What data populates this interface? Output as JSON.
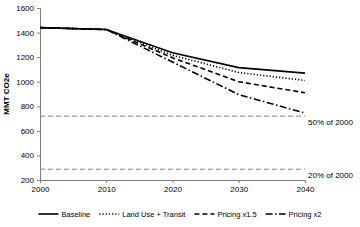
{
  "chart_data": {
    "type": "line",
    "y_label": "MMT CO2e",
    "x": [
      2000,
      2010,
      2020,
      2030,
      2040
    ],
    "xlim": [
      2000,
      2040
    ],
    "xticks": [
      2000,
      2010,
      2020,
      2030,
      2040
    ],
    "ylim": [
      200,
      1600
    ],
    "yticks": [
      200,
      400,
      600,
      800,
      1000,
      1200,
      1400,
      1600
    ],
    "grid": false,
    "legend": "bottom",
    "series": [
      {
        "name": "Baseline",
        "color": "#000000",
        "line_style": "solid",
        "values": [
          1440,
          1425,
          1235,
          1115,
          1070
        ]
      },
      {
        "name": "Land Use + Transit",
        "color": "#000000",
        "line_style": "dotted",
        "values": [
          1440,
          1425,
          1215,
          1075,
          1010
        ]
      },
      {
        "name": "Pricing x1.5",
        "color": "#000000",
        "line_style": "dashed",
        "values": [
          1440,
          1425,
          1195,
          1000,
          910
        ]
      },
      {
        "name": "Pricing x2",
        "color": "#000000",
        "line_style": "dashdot",
        "values": [
          1440,
          1425,
          1160,
          895,
          745
        ]
      }
    ],
    "reference_lines": [
      {
        "value": 720,
        "label": "50% of 2000",
        "color": "#808080",
        "line_style": "dashed"
      },
      {
        "value": 288,
        "label": "20% of 2000",
        "color": "#808080",
        "line_style": "dashed"
      }
    ]
  }
}
